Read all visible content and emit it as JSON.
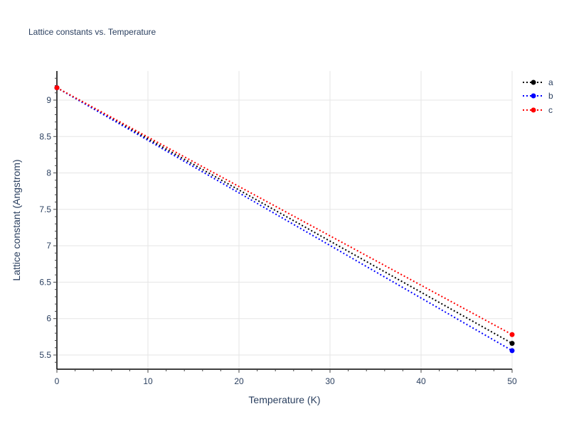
{
  "title": "Lattice constants vs. Temperature",
  "xaxis": {
    "label": "Temperature (K)",
    "ticks": [
      "0",
      "10",
      "20",
      "30",
      "40",
      "50"
    ]
  },
  "yaxis": {
    "label": "Lattice constant (Angstrom)",
    "ticks": [
      "5.5",
      "6",
      "6.5",
      "7",
      "7.5",
      "8",
      "8.5",
      "9"
    ]
  },
  "legend": [
    {
      "name": "a",
      "color": "#000000"
    },
    {
      "name": "b",
      "color": "#0000ff"
    },
    {
      "name": "c",
      "color": "#ff0000"
    }
  ],
  "chart_data": {
    "type": "line",
    "title": "Lattice constants vs. Temperature",
    "xlabel": "Temperature (K)",
    "ylabel": "Lattice constant (Angstrom)",
    "x": [
      0,
      50
    ],
    "xlim": [
      0,
      50
    ],
    "ylim": [
      5.3,
      9.4
    ],
    "grid": true,
    "legend_position": "top-right",
    "series": [
      {
        "name": "a",
        "color": "#000000",
        "style": "dotted-markers",
        "values": [
          9.17,
          5.66
        ]
      },
      {
        "name": "b",
        "color": "#0000ff",
        "style": "dotted-markers",
        "values": [
          9.17,
          5.56
        ]
      },
      {
        "name": "c",
        "color": "#ff0000",
        "style": "dotted-markers",
        "values": [
          9.17,
          5.78
        ]
      }
    ]
  }
}
